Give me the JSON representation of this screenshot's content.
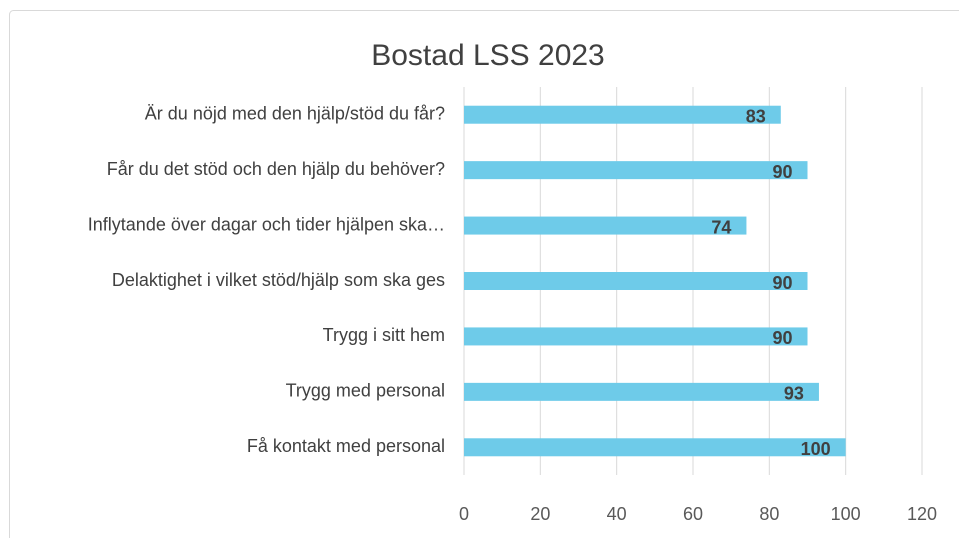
{
  "chart_data": {
    "type": "barh",
    "title": "Bostad LSS 2023",
    "categories": [
      "Är du nöjd med den hjälp/stöd du får?",
      "Får du det stöd och den hjälp du behöver?",
      "Inflytande över dagar och tider hjälpen ska…",
      "Delaktighet i vilket stöd/hjälp som ska ges",
      "Trygg i sitt hem",
      "Trygg med personal",
      "Få kontakt med personal"
    ],
    "values": [
      83,
      90,
      74,
      90,
      90,
      93,
      100
    ],
    "color": "#6ecbe9",
    "xlim": [
      0,
      120
    ],
    "xticks": [
      0,
      20,
      40,
      60,
      80,
      100,
      120
    ],
    "grid": true
  }
}
